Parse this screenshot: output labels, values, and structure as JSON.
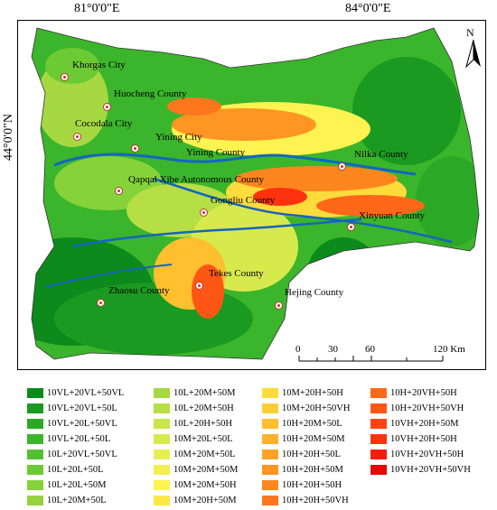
{
  "coordinates": {
    "top_left": "81°0'0\"E",
    "top_right": "84°0'0\"E",
    "left": "44°0'0\"N"
  },
  "north_arrow": {
    "label": "N",
    "icon": "north-arrow-icon"
  },
  "scale_bar": {
    "labels": [
      "0",
      "30",
      "60",
      "120 Km"
    ],
    "unit": "Km"
  },
  "cities": [
    {
      "name": "Khorgas City"
    },
    {
      "name": "Huocheng County"
    },
    {
      "name": "Cocodala City"
    },
    {
      "name": "Yining City"
    },
    {
      "name": "Yining County"
    },
    {
      "name": "Nilka County"
    },
    {
      "name": "Qapqal Xibe Autonomous County"
    },
    {
      "name": "Gongliu County"
    },
    {
      "name": "Xinyuan County"
    },
    {
      "name": "Tekes County"
    },
    {
      "name": "Zhaosu County"
    },
    {
      "name": "Hejing County"
    }
  ],
  "legend": [
    {
      "label": "10VL+20VL+50VL",
      "color": "#0c8a1b"
    },
    {
      "label": "10VL+20VL+50L",
      "color": "#1b9a21"
    },
    {
      "label": "10VL+20L+50VL",
      "color": "#2ba826"
    },
    {
      "label": "10VL+20L+50L",
      "color": "#3bb52b"
    },
    {
      "label": "10L+20VL+50VL",
      "color": "#52c030"
    },
    {
      "label": "10L+20L+50L",
      "color": "#6cca34"
    },
    {
      "label": "10L+20L+50M",
      "color": "#85d23a"
    },
    {
      "label": "10L+20M+50L",
      "color": "#95d23c"
    },
    {
      "label": "10L+20M+50M",
      "color": "#a6d842"
    },
    {
      "label": "10L+20M+50H",
      "color": "#b6df45"
    },
    {
      "label": "10L+20H+50H",
      "color": "#c7e64a"
    },
    {
      "label": "10M+20L+50L",
      "color": "#d6ea4e"
    },
    {
      "label": "10M+20M+50L",
      "color": "#e6ef52"
    },
    {
      "label": "10M+20M+50M",
      "color": "#f2ef50"
    },
    {
      "label": "10M+20M+50H",
      "color": "#fff352"
    },
    {
      "label": "10M+20H+50M",
      "color": "#ffe845"
    },
    {
      "label": "10M+20H+50H",
      "color": "#ffdb3c"
    },
    {
      "label": "10M+20H+50VH",
      "color": "#ffcd34"
    },
    {
      "label": "10H+20M+50L",
      "color": "#ffbf2e"
    },
    {
      "label": "10H+20M+50M",
      "color": "#ffb12a"
    },
    {
      "label": "10H+20H+50L",
      "color": "#ffa326"
    },
    {
      "label": "10H+20H+50M",
      "color": "#ff9522"
    },
    {
      "label": "10H+20H+50H",
      "color": "#ff861f"
    },
    {
      "label": "10H+20H+50VH",
      "color": "#ff771c"
    },
    {
      "label": "10H+20VH+50H",
      "color": "#ff6719"
    },
    {
      "label": "10H+20VH+50VH",
      "color": "#ff5616"
    },
    {
      "label": "10VH+20H+50M",
      "color": "#ff4413"
    },
    {
      "label": "10VH+20H+50H",
      "color": "#ff3210"
    },
    {
      "label": "10VH+20VH+50H",
      "color": "#f51e0c"
    },
    {
      "label": "10VH+20VH+50VH",
      "color": "#e60808"
    }
  ]
}
